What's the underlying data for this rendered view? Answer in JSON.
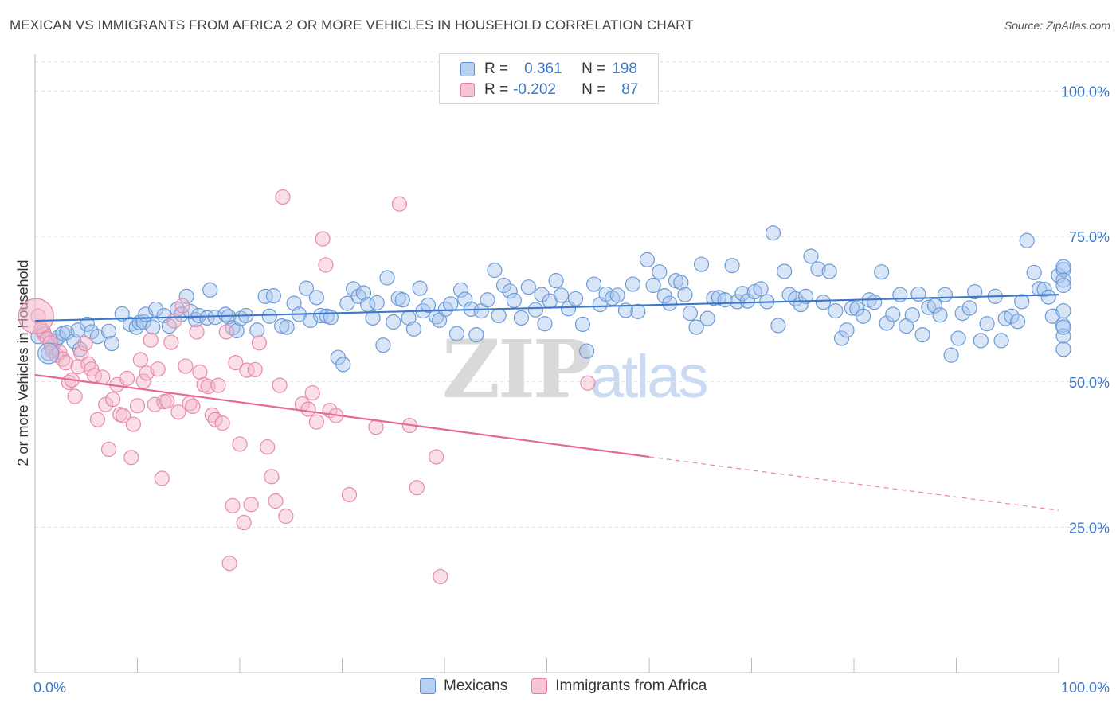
{
  "title": "MEXICAN VS IMMIGRANTS FROM AFRICA 2 OR MORE VEHICLES IN HOUSEHOLD CORRELATION CHART",
  "source": "Source: ZipAtlas.com",
  "watermark": {
    "a": "ZIP",
    "b": "atlas"
  },
  "colors": {
    "blue": "#3b78c9",
    "blue_fill": "#a9c6ee",
    "pink": "#e46a95",
    "pink_fill": "#f4b8ca"
  },
  "legend": {
    "rows": [
      {
        "r_label": "R =",
        "r_value": "0.361",
        "n_label": "N =",
        "n_value": "198"
      },
      {
        "r_label": "R =",
        "r_value": "-0.202",
        "n_label": "N =",
        "n_value": "87"
      }
    ],
    "series": [
      "Mexicans",
      "Immigrants from Africa"
    ]
  },
  "chart_data": {
    "type": "scatter",
    "title": "MEXICAN VS IMMIGRANTS FROM AFRICA 2 OR MORE VEHICLES IN HOUSEHOLD CORRELATION CHART",
    "xlabel": "",
    "ylabel": "2 or more Vehicles in Household",
    "xlim": [
      0,
      100
    ],
    "ylim": [
      0,
      105
    ],
    "x_tick_labels": [
      "0.0%",
      "100.0%"
    ],
    "y_ticks": [
      25,
      50,
      75,
      100
    ],
    "y_tick_labels": [
      "25.0%",
      "50.0%",
      "75.0%",
      "100.0%"
    ],
    "grid": true,
    "legend_position": "top-center",
    "series": [
      {
        "name": "Mexicans",
        "R": 0.361,
        "N": 198,
        "trend": {
          "x": [
            0,
            100
          ],
          "y": [
            60.5,
            65.0
          ]
        },
        "points": [
          [
            0.3,
            57.8
          ],
          [
            0.8,
            58.7
          ],
          [
            1.3,
            54.9
          ],
          [
            1.6,
            56.0
          ],
          [
            2.0,
            57.0
          ],
          [
            2.3,
            57.7
          ],
          [
            2.7,
            58.3
          ],
          [
            3.1,
            58.5
          ],
          [
            3.8,
            57.0
          ],
          [
            4.2,
            58.9
          ],
          [
            4.4,
            55.6
          ],
          [
            5.1,
            59.9
          ],
          [
            5.5,
            58.6
          ],
          [
            6.1,
            57.8
          ],
          [
            7.2,
            58.7
          ],
          [
            7.5,
            56.6
          ],
          [
            8.5,
            61.7
          ],
          [
            9.3,
            59.9
          ],
          [
            9.9,
            59.4
          ],
          [
            10.2,
            60.2
          ],
          [
            10.6,
            60.3
          ],
          [
            10.8,
            61.6
          ],
          [
            11.5,
            59.4
          ],
          [
            11.8,
            62.5
          ],
          [
            12.6,
            61.4
          ],
          [
            13.1,
            59.6
          ],
          [
            13.9,
            62.5
          ],
          [
            14.3,
            61.6
          ],
          [
            14.8,
            64.7
          ],
          [
            15.2,
            62.1
          ],
          [
            15.7,
            60.7
          ],
          [
            16.0,
            61.4
          ],
          [
            16.8,
            61.0
          ],
          [
            17.1,
            65.8
          ],
          [
            17.6,
            61.1
          ],
          [
            18.6,
            61.6
          ],
          [
            18.9,
            61.2
          ],
          [
            19.3,
            59.3
          ],
          [
            19.7,
            58.8
          ],
          [
            20.1,
            60.9
          ],
          [
            20.6,
            61.4
          ],
          [
            21.7,
            58.9
          ],
          [
            22.5,
            64.7
          ],
          [
            22.9,
            61.3
          ],
          [
            23.3,
            64.8
          ],
          [
            24.1,
            59.6
          ],
          [
            24.6,
            59.4
          ],
          [
            25.3,
            63.5
          ],
          [
            25.8,
            61.6
          ],
          [
            26.5,
            66.1
          ],
          [
            26.9,
            60.6
          ],
          [
            27.5,
            64.5
          ],
          [
            27.9,
            61.4
          ],
          [
            28.5,
            61.3
          ],
          [
            28.9,
            61.1
          ],
          [
            29.6,
            54.2
          ],
          [
            30.1,
            53.0
          ],
          [
            30.5,
            63.5
          ],
          [
            31.1,
            66.0
          ],
          [
            31.6,
            64.7
          ],
          [
            32.1,
            65.3
          ],
          [
            32.5,
            63.3
          ],
          [
            33.0,
            61.0
          ],
          [
            33.4,
            63.6
          ],
          [
            34.0,
            56.3
          ],
          [
            34.4,
            67.9
          ],
          [
            35.0,
            60.3
          ],
          [
            35.5,
            64.4
          ],
          [
            35.9,
            64.1
          ],
          [
            36.5,
            61.0
          ],
          [
            37.0,
            59.1
          ],
          [
            37.6,
            66.1
          ],
          [
            37.9,
            62.2
          ],
          [
            38.4,
            63.2
          ],
          [
            39.2,
            61.2
          ],
          [
            39.5,
            60.6
          ],
          [
            40.1,
            62.5
          ],
          [
            40.6,
            63.4
          ],
          [
            41.2,
            58.3
          ],
          [
            41.6,
            65.8
          ],
          [
            42.0,
            64.2
          ],
          [
            42.6,
            62.5
          ],
          [
            43.1,
            58.1
          ],
          [
            43.6,
            62.2
          ],
          [
            44.2,
            64.1
          ],
          [
            44.9,
            69.2
          ],
          [
            45.3,
            61.4
          ],
          [
            45.8,
            66.6
          ],
          [
            46.4,
            65.6
          ],
          [
            46.8,
            64.0
          ],
          [
            47.5,
            61.0
          ],
          [
            48.2,
            66.3
          ],
          [
            48.9,
            62.4
          ],
          [
            49.5,
            65.0
          ],
          [
            49.8,
            60.0
          ],
          [
            50.3,
            63.9
          ],
          [
            50.9,
            67.4
          ],
          [
            51.4,
            64.9
          ],
          [
            52.1,
            62.6
          ],
          [
            52.8,
            64.3
          ],
          [
            53.5,
            59.9
          ],
          [
            53.9,
            55.3
          ],
          [
            54.6,
            66.8
          ],
          [
            55.2,
            63.3
          ],
          [
            55.8,
            65.1
          ],
          [
            56.4,
            64.4
          ],
          [
            56.9,
            64.9
          ],
          [
            57.7,
            62.3
          ],
          [
            58.4,
            66.8
          ],
          [
            58.9,
            62.1
          ],
          [
            59.8,
            71.0
          ],
          [
            60.4,
            66.6
          ],
          [
            61.0,
            68.9
          ],
          [
            61.5,
            64.8
          ],
          [
            62.0,
            63.5
          ],
          [
            62.6,
            67.4
          ],
          [
            63.1,
            67.1
          ],
          [
            63.5,
            65.0
          ],
          [
            64.0,
            61.8
          ],
          [
            64.6,
            59.4
          ],
          [
            65.1,
            70.2
          ],
          [
            65.7,
            60.9
          ],
          [
            66.3,
            64.4
          ],
          [
            66.8,
            64.5
          ],
          [
            67.4,
            64.1
          ],
          [
            68.1,
            70.0
          ],
          [
            68.6,
            63.8
          ],
          [
            69.1,
            65.2
          ],
          [
            69.6,
            63.9
          ],
          [
            70.3,
            65.5
          ],
          [
            70.9,
            66.0
          ],
          [
            71.5,
            63.8
          ],
          [
            72.1,
            75.6
          ],
          [
            72.6,
            59.7
          ],
          [
            73.2,
            69.0
          ],
          [
            73.7,
            65.0
          ],
          [
            74.3,
            64.3
          ],
          [
            74.8,
            63.3
          ],
          [
            75.3,
            64.7
          ],
          [
            75.8,
            71.6
          ],
          [
            76.5,
            69.4
          ],
          [
            77.0,
            63.7
          ],
          [
            77.6,
            69.0
          ],
          [
            78.2,
            62.2
          ],
          [
            78.8,
            57.5
          ],
          [
            79.3,
            58.9
          ],
          [
            79.8,
            62.7
          ],
          [
            80.3,
            62.6
          ],
          [
            80.9,
            61.3
          ],
          [
            81.5,
            64.1
          ],
          [
            82.0,
            63.7
          ],
          [
            82.7,
            68.9
          ],
          [
            83.2,
            60.1
          ],
          [
            83.8,
            61.6
          ],
          [
            84.5,
            65.0
          ],
          [
            85.1,
            59.6
          ],
          [
            85.7,
            61.5
          ],
          [
            86.3,
            65.1
          ],
          [
            86.7,
            58.1
          ],
          [
            87.3,
            62.8
          ],
          [
            87.9,
            63.1
          ],
          [
            88.4,
            61.5
          ],
          [
            88.9,
            65.0
          ],
          [
            89.5,
            54.6
          ],
          [
            90.2,
            57.5
          ],
          [
            90.6,
            61.8
          ],
          [
            91.3,
            62.7
          ],
          [
            91.8,
            65.5
          ],
          [
            92.4,
            57.1
          ],
          [
            93.0,
            60.0
          ],
          [
            93.8,
            64.7
          ],
          [
            94.4,
            57.1
          ],
          [
            94.8,
            60.9
          ],
          [
            95.4,
            61.3
          ],
          [
            96.0,
            60.4
          ],
          [
            96.4,
            63.8
          ],
          [
            96.9,
            74.3
          ],
          [
            97.6,
            68.8
          ],
          [
            98.1,
            66.0
          ],
          [
            98.6,
            65.9
          ],
          [
            99.0,
            64.6
          ],
          [
            99.4,
            61.3
          ],
          [
            100.0,
            68.3
          ],
          [
            100.4,
            59.8
          ],
          [
            101.1,
            69.3
          ],
          [
            101.6,
            55.6
          ],
          [
            102.3,
            69.8
          ],
          [
            102.8,
            57.9
          ],
          [
            103.5,
            59.4
          ],
          [
            104.1,
            62.2
          ],
          [
            104.7,
            67.5
          ],
          [
            105.0,
            66.6
          ]
        ]
      },
      {
        "name": "Immigrants from Africa",
        "R": -0.202,
        "N": 87,
        "trend": {
          "x": [
            0,
            60
          ],
          "y": [
            51.2,
            37.1
          ]
        },
        "trend_dashed": {
          "x": [
            60,
            100
          ],
          "y": [
            37.1,
            27.9
          ]
        },
        "points": [
          [
            0.1,
            61.3
          ],
          [
            0.6,
            59.1
          ],
          [
            0.9,
            58.2
          ],
          [
            1.2,
            57.4
          ],
          [
            1.5,
            56.7
          ],
          [
            1.7,
            55.4
          ],
          [
            2.1,
            54.6
          ],
          [
            2.4,
            55.1
          ],
          [
            2.7,
            53.9
          ],
          [
            3.0,
            53.3
          ],
          [
            3.3,
            49.9
          ],
          [
            3.6,
            50.3
          ],
          [
            3.9,
            47.5
          ],
          [
            4.2,
            52.6
          ],
          [
            4.5,
            54.9
          ],
          [
            4.9,
            56.6
          ],
          [
            5.2,
            53.1
          ],
          [
            5.5,
            52.2
          ],
          [
            5.8,
            51.1
          ],
          [
            6.1,
            43.5
          ],
          [
            6.6,
            50.8
          ],
          [
            6.9,
            46.1
          ],
          [
            7.2,
            38.4
          ],
          [
            7.6,
            47.0
          ],
          [
            8.0,
            49.5
          ],
          [
            8.3,
            44.4
          ],
          [
            8.6,
            44.2
          ],
          [
            9.0,
            50.6
          ],
          [
            9.4,
            37.0
          ],
          [
            9.6,
            42.7
          ],
          [
            10.0,
            45.9
          ],
          [
            10.3,
            53.8
          ],
          [
            10.6,
            50.1
          ],
          [
            10.9,
            51.5
          ],
          [
            11.3,
            57.2
          ],
          [
            11.7,
            46.1
          ],
          [
            12.0,
            52.2
          ],
          [
            12.4,
            33.4
          ],
          [
            12.6,
            46.6
          ],
          [
            12.9,
            46.7
          ],
          [
            13.3,
            56.8
          ],
          [
            13.6,
            60.5
          ],
          [
            14.0,
            44.8
          ],
          [
            14.4,
            63.1
          ],
          [
            14.7,
            52.7
          ],
          [
            15.1,
            46.3
          ],
          [
            15.4,
            45.8
          ],
          [
            15.8,
            58.6
          ],
          [
            16.1,
            51.7
          ],
          [
            16.5,
            49.5
          ],
          [
            16.9,
            49.2
          ],
          [
            17.3,
            44.3
          ],
          [
            17.6,
            43.5
          ],
          [
            17.9,
            49.4
          ],
          [
            18.3,
            42.9
          ],
          [
            18.7,
            58.6
          ],
          [
            19.0,
            18.8
          ],
          [
            19.3,
            28.7
          ],
          [
            19.6,
            53.3
          ],
          [
            20.0,
            39.3
          ],
          [
            20.4,
            25.8
          ],
          [
            20.7,
            52.0
          ],
          [
            21.1,
            28.9
          ],
          [
            21.5,
            52.1
          ],
          [
            21.9,
            56.7
          ],
          [
            22.7,
            38.8
          ],
          [
            23.1,
            33.7
          ],
          [
            23.5,
            29.5
          ],
          [
            23.9,
            49.4
          ],
          [
            24.2,
            81.8
          ],
          [
            24.5,
            26.9
          ],
          [
            26.1,
            46.2
          ],
          [
            26.7,
            45.3
          ],
          [
            27.1,
            48.1
          ],
          [
            27.5,
            43.1
          ],
          [
            28.1,
            74.6
          ],
          [
            28.4,
            70.1
          ],
          [
            28.8,
            45.1
          ],
          [
            29.4,
            44.2
          ],
          [
            30.7,
            30.6
          ],
          [
            33.3,
            42.2
          ],
          [
            35.6,
            80.6
          ],
          [
            36.6,
            42.5
          ],
          [
            37.3,
            31.8
          ],
          [
            39.2,
            37.1
          ],
          [
            39.6,
            16.5
          ],
          [
            54.0,
            49.8
          ]
        ]
      }
    ]
  }
}
